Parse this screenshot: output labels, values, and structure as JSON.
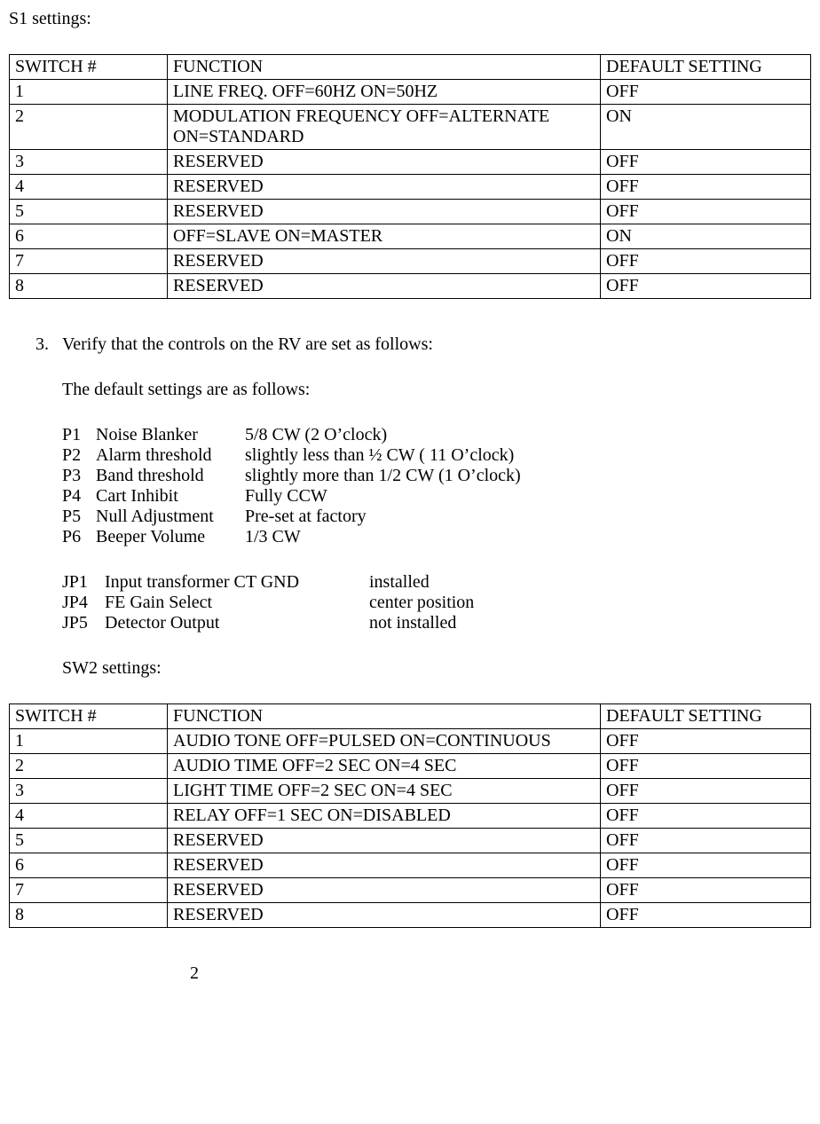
{
  "section1_title": "S1 settings:",
  "table1": {
    "headers": {
      "switch": "SWITCH #",
      "function": "FUNCTION",
      "default": "DEFAULT SETTING"
    },
    "rows": [
      {
        "switch": "1",
        "function": "LINE FREQ. OFF=60HZ ON=50HZ",
        "default": "OFF"
      },
      {
        "switch": "2",
        "function": "MODULATION FREQUENCY OFF=ALTERNATE ON=STANDARD",
        "default": "ON"
      },
      {
        "switch": "3",
        "function": "RESERVED",
        "default": "OFF"
      },
      {
        "switch": "4",
        "function": "RESERVED",
        "default": "OFF"
      },
      {
        "switch": "5",
        "function": "RESERVED",
        "default": "OFF"
      },
      {
        "switch": "6",
        "function": "OFF=SLAVE ON=MASTER",
        "default": "ON"
      },
      {
        "switch": "7",
        "function": "RESERVED",
        "default": "OFF"
      },
      {
        "switch": "8",
        "function": "RESERVED",
        "default": "OFF"
      }
    ]
  },
  "item3": {
    "number": "3.",
    "text": "Verify that the controls on the RV are set as follows:"
  },
  "defaults_intro": "The default settings are as follows:",
  "pot_settings": [
    {
      "id": "P1",
      "name": "Noise Blanker",
      "value": "5/8 CW (2 O’clock)"
    },
    {
      "id": "P2",
      "name": "Alarm threshold",
      "value": "slightly less than ½ CW ( 11 O’clock)"
    },
    {
      "id": "P3",
      "name": "Band threshold",
      "value": "slightly more than 1/2 CW (1 O’clock)"
    },
    {
      "id": "P4",
      "name": "Cart Inhibit",
      "value": "Fully CCW"
    },
    {
      "id": "P5",
      "name": "Null Adjustment",
      "value": "Pre-set at factory"
    },
    {
      "id": "P6",
      "name": "Beeper Volume",
      "value": "1/3 CW"
    }
  ],
  "jumper_settings": [
    {
      "id": "JP1",
      "name": "Input transformer CT GND",
      "value": "installed"
    },
    {
      "id": "JP4",
      "name": "FE Gain Select",
      "value": "center position"
    },
    {
      "id": "JP5",
      "name": "Detector Output",
      "value": "not installed"
    }
  ],
  "section2_title": "SW2 settings:",
  "table2": {
    "headers": {
      "switch": "SWITCH #",
      "function": "FUNCTION",
      "default": "DEFAULT SETTING"
    },
    "rows": [
      {
        "switch": "1",
        "function": "AUDIO TONE OFF=PULSED ON=CONTINUOUS",
        "default": "OFF"
      },
      {
        "switch": "2",
        "function": "AUDIO TIME OFF=2 SEC ON=4 SEC",
        "default": "OFF"
      },
      {
        "switch": "3",
        "function": "LIGHT TIME OFF=2 SEC ON=4 SEC",
        "default": "OFF"
      },
      {
        "switch": "4",
        "function": "RELAY OFF=1 SEC ON=DISABLED",
        "default": "OFF"
      },
      {
        "switch": "5",
        "function": "RESERVED",
        "default": "OFF"
      },
      {
        "switch": "6",
        "function": "RESERVED",
        "default": "OFF"
      },
      {
        "switch": "7",
        "function": "RESERVED",
        "default": "OFF"
      },
      {
        "switch": "8",
        "function": "RESERVED",
        "default": "OFF"
      }
    ]
  },
  "page_number": "2"
}
